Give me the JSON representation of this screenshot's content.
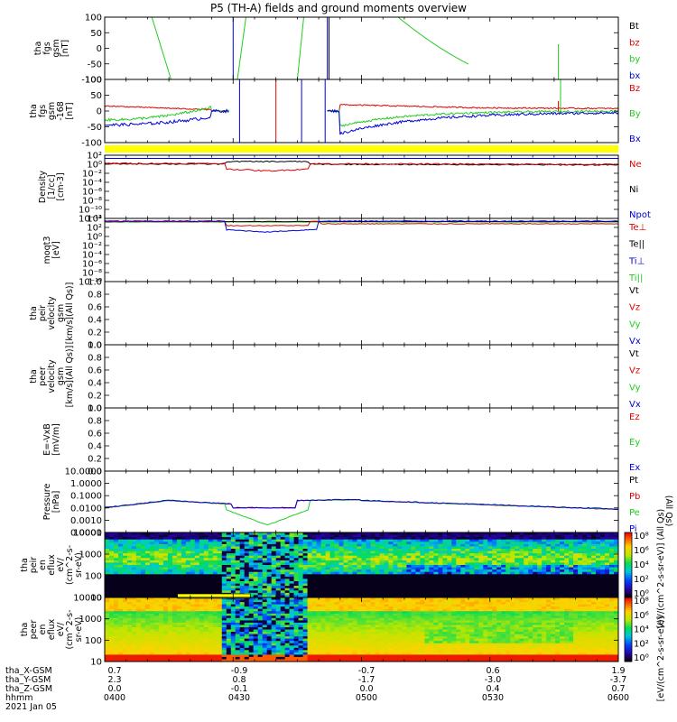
{
  "title": "P5 (TH-A) fields and ground moments overview",
  "colors": {
    "black": "#000000",
    "red": "#e00000",
    "green": "#22cc22",
    "blue": "#0000dd",
    "yellow": "#ffff00"
  },
  "panels": [
    {
      "id": "fgs",
      "ylabel": [
        "tha",
        "fgs",
        "gsm",
        "[nT]"
      ],
      "ticks": [
        "100",
        "50",
        "0",
        "-50",
        "-100"
      ],
      "legend": [
        {
          "t": "Bt",
          "c": "black"
        },
        {
          "t": "bz",
          "c": "red"
        },
        {
          "t": "by",
          "c": "green"
        },
        {
          "t": "bx",
          "c": "blue"
        }
      ]
    },
    {
      "id": "fgl",
      "ylabel": [
        "tha",
        "fgs",
        "gsm",
        "-168",
        "[nT]"
      ],
      "ticks": [
        "100",
        "50",
        "0",
        "-50",
        "-100"
      ],
      "legend": [
        {
          "t": "Bz",
          "c": "red"
        },
        {
          "t": "By",
          "c": "green"
        },
        {
          "t": "Bx",
          "c": "blue"
        }
      ]
    },
    {
      "id": "dens",
      "ylabel": [
        "Density",
        "[1/cc]",
        "[cm-3]"
      ],
      "ticks": [
        "10²",
        "10⁰",
        "10⁻²",
        "10⁻⁴",
        "10⁻⁶",
        "10⁻⁸",
        "10⁻¹⁰",
        "10⁻¹²"
      ],
      "legend": [
        {
          "t": "Ne",
          "c": "red"
        },
        {
          "t": "Ni",
          "c": "black"
        },
        {
          "t": "Npot",
          "c": "blue"
        }
      ]
    },
    {
      "id": "temp",
      "ylabel": [
        "moqt3",
        "[eV]"
      ],
      "ticks": [
        "10⁴",
        "10²",
        "10⁰",
        "10⁻²",
        "10⁻⁴",
        "10⁻⁶",
        "10⁻⁸",
        "10⁻¹⁰"
      ],
      "legend": [
        {
          "t": "Te⊥",
          "c": "red"
        },
        {
          "t": "Te||",
          "c": "black"
        },
        {
          "t": "Ti⊥",
          "c": "blue"
        },
        {
          "t": "Ti||",
          "c": "green"
        }
      ]
    },
    {
      "id": "vi",
      "ylabel": [
        "tha",
        "peir",
        "velocity",
        "gsm",
        "[km/s](All Qs)]"
      ],
      "ticks": [
        "1.0",
        "0.8",
        "0.6",
        "0.4",
        "0.2",
        "0.0"
      ],
      "legend": [
        {
          "t": "Vt",
          "c": "black"
        },
        {
          "t": "Vz",
          "c": "red"
        },
        {
          "t": "Vy",
          "c": "green"
        },
        {
          "t": "Vx",
          "c": "blue"
        }
      ]
    },
    {
      "id": "ve",
      "ylabel": [
        "tha",
        "peer",
        "velocity",
        "gsm",
        "[km/s](All Qs)]"
      ],
      "ticks": [
        "1.0",
        "0.8",
        "0.6",
        "0.4",
        "0.2",
        "0.0"
      ],
      "legend": [
        {
          "t": "Vt",
          "c": "black"
        },
        {
          "t": "Vz",
          "c": "red"
        },
        {
          "t": "Vy",
          "c": "green"
        },
        {
          "t": "Vx",
          "c": "blue"
        }
      ]
    },
    {
      "id": "ef",
      "ylabel": [
        "E=-VxB",
        "[mV/m]"
      ],
      "ticks": [
        "1.0",
        "0.8",
        "0.6",
        "0.4",
        "0.2",
        "0.0"
      ],
      "legend": [
        {
          "t": "Ez",
          "c": "red"
        },
        {
          "t": "Ey",
          "c": "green"
        },
        {
          "t": "Ex",
          "c": "blue"
        }
      ]
    },
    {
      "id": "pres",
      "ylabel": [
        "Pressure",
        "[nPa]"
      ],
      "ticks": [
        "10.0000",
        "1.0000",
        "0.1000",
        "0.0100",
        "0.0010",
        "0.0001"
      ],
      "legend": [
        {
          "t": "Pt",
          "c": "black"
        },
        {
          "t": "Pb",
          "c": "red"
        },
        {
          "t": "Pe",
          "c": "green"
        },
        {
          "t": "Pi",
          "c": "blue"
        }
      ],
      "sidelabel": "(All Qs)"
    },
    {
      "id": "speci",
      "ylabel": [
        "tha",
        "peir",
        "en",
        "eflux",
        "eV/",
        "(cm^2-s-",
        "sr-eV)"
      ],
      "ticks": [
        "10000",
        "1000",
        "100",
        "10"
      ],
      "cbar": [
        "10⁸",
        "10⁶",
        "10⁴",
        "10²",
        "10⁰"
      ],
      "cbarlabel": "[eV/(cm^2-s-sr-eV)] (All Qs)"
    },
    {
      "id": "spece",
      "ylabel": [
        "tha",
        "peer",
        "en",
        "eflux",
        "eV/",
        "(cm^2-s-",
        "sr-eV)"
      ],
      "ticks": [
        "10000",
        "1000",
        "100",
        "10"
      ],
      "cbar": [
        "10⁸",
        "10⁶",
        "10⁴",
        "10²",
        "10⁰"
      ],
      "cbarlabel": "[eV/(cm^2-s-sr-eV)]"
    }
  ],
  "footer": {
    "rows": [
      {
        "label": "tha_X-GSM",
        "values": [
          "0.7",
          "-0.9",
          "-0.9",
          "-0.7",
          "0.6",
          "1.9"
        ]
      },
      {
        "label": "tha_Y-GSM",
        "values": [
          "2.3",
          "0.8",
          "-1.7",
          "-1.7",
          "-3.0",
          "-3.7"
        ]
      },
      {
        "label": "tha_Z-GSM",
        "values": [
          "0.0",
          "-0.1",
          "-0.1",
          "0.0",
          "0.4",
          "0.7"
        ]
      },
      {
        "label": "hhmm",
        "values": [
          "0400",
          "0430",
          "0430",
          "0500",
          "0530",
          "0600"
        ]
      }
    ],
    "date": "2021 Jan 05"
  },
  "chart_data": {
    "type": "line",
    "title": "P5 (TH-A) fields and ground moments overview",
    "x_axis": {
      "label": "hhmm",
      "ticks": [
        "0400",
        "0430",
        "0500",
        "0530",
        "0600"
      ],
      "range": [
        "0400",
        "0600"
      ]
    },
    "panels": [
      {
        "name": "tha fgs gsm [nT]",
        "ylim": [
          -100,
          100
        ],
        "series": [
          "Bt",
          "bz",
          "by",
          "bx"
        ]
      },
      {
        "name": "tha fgs gsm -168 [nT]",
        "ylim": [
          -125,
          125
        ],
        "series": [
          "Bz",
          "By",
          "Bx"
        ]
      },
      {
        "name": "Density [1/cc]",
        "scale": "log",
        "ylim": [
          "1e-12",
          "1e2"
        ],
        "series": [
          "Ne",
          "Ni",
          "Npot"
        ]
      },
      {
        "name": "moqt3 [eV]",
        "scale": "log",
        "ylim": [
          "1e-10",
          "1e4"
        ],
        "series": [
          "Te⊥",
          "Te||",
          "Ti⊥",
          "Ti||"
        ]
      },
      {
        "name": "tha peir velocity gsm",
        "ylim": [
          0,
          1
        ],
        "series": [
          "Vt",
          "Vz",
          "Vy",
          "Vx"
        ]
      },
      {
        "name": "tha peer velocity gsm",
        "ylim": [
          0,
          1
        ],
        "series": [
          "Vt",
          "Vz",
          "Vy",
          "Vx"
        ]
      },
      {
        "name": "E=-VxB [mV/m]",
        "ylim": [
          0,
          1
        ],
        "series": [
          "Ez",
          "Ey",
          "Ex"
        ]
      },
      {
        "name": "Pressure [nPa]",
        "scale": "log",
        "ylim": [
          "1e-4",
          "1e1"
        ],
        "series": [
          "Pt",
          "Pb",
          "Pe",
          "Pi"
        ]
      },
      {
        "name": "tha peir en eflux",
        "type": "heatmap",
        "ylim": [
          5,
          20000
        ],
        "colorbar": [
          "1e0",
          "1e8"
        ]
      },
      {
        "name": "tha peer en eflux",
        "type": "heatmap",
        "ylim": [
          5,
          20000
        ],
        "colorbar": [
          "1e0",
          "1e8"
        ]
      }
    ]
  }
}
